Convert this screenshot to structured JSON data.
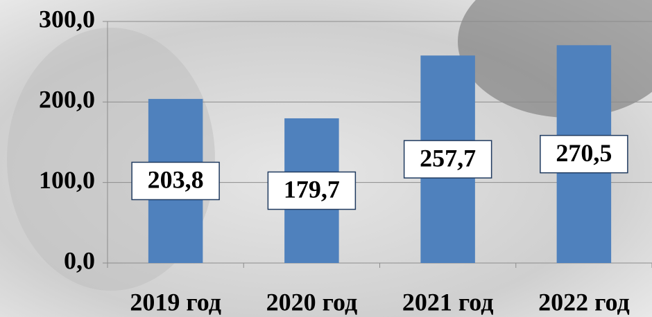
{
  "chart_data": {
    "type": "bar",
    "categories": [
      "2019 год",
      "2020 год",
      "2021 год",
      "2022 год"
    ],
    "values": [
      203.8,
      179.7,
      257.7,
      270.5
    ],
    "value_labels": [
      "203,8",
      "179,7",
      "257,7",
      "270,5"
    ],
    "color": "#4f81bd",
    "ylim": [
      0,
      300
    ],
    "yticks": [
      {
        "value": 0,
        "label": "0,0"
      },
      {
        "value": 100,
        "label": "100,0"
      },
      {
        "value": 200,
        "label": "200,0"
      },
      {
        "value": 300,
        "label": "300,0"
      }
    ],
    "grid": true
  }
}
